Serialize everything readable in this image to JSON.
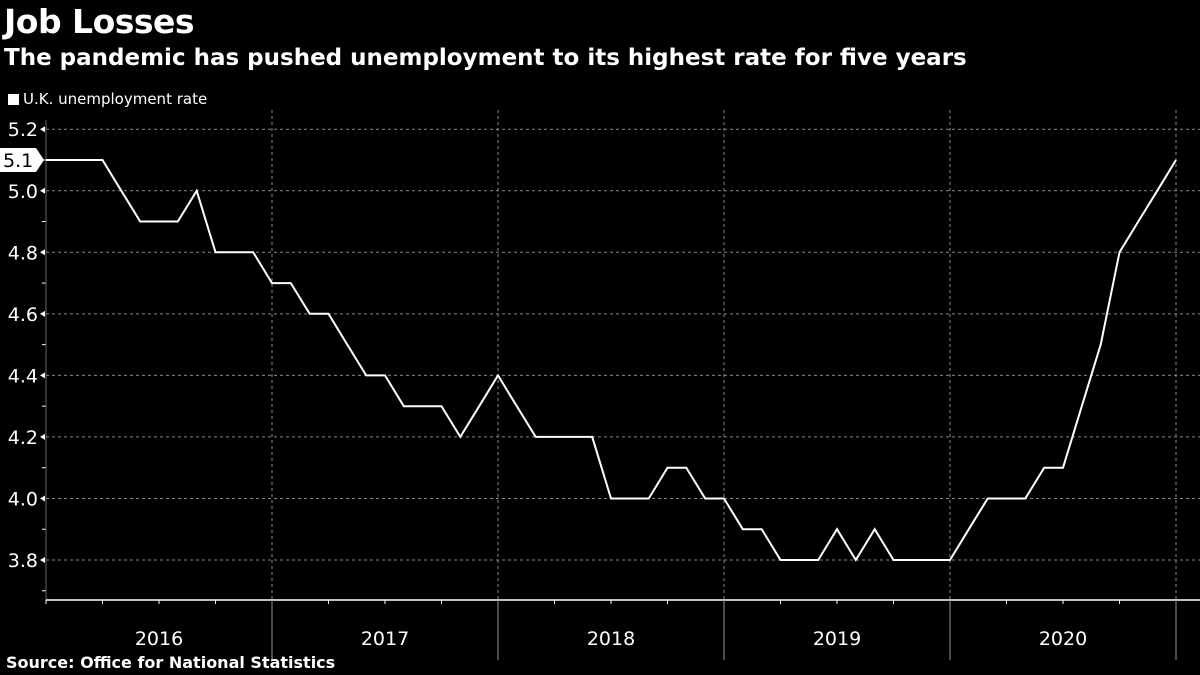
{
  "chart_data": {
    "type": "line",
    "title": "Job Losses",
    "subtitle": "The pandemic has pushed unemployment to its highest rate for five years",
    "legend": [
      "U.K. unemployment rate"
    ],
    "legend_placement": "top-left",
    "source": "Source: Office for National Statistics",
    "xlabel": "",
    "ylabel": "",
    "x_start": "2016-01",
    "x_frequency": "monthly",
    "x_ticks": [
      "2016",
      "2017",
      "2018",
      "2019",
      "2020"
    ],
    "y_ticks": [
      "3.8",
      "4.0",
      "4.2",
      "4.4",
      "4.6",
      "4.8",
      "5.0",
      "5.2"
    ],
    "ylim": [
      3.67,
      5.23
    ],
    "grid": true,
    "last_value_label": "5.1",
    "series": [
      {
        "name": "U.K. unemployment rate",
        "color": "#ffffff",
        "values": [
          5.1,
          5.1,
          5.1,
          5.1,
          5.0,
          4.9,
          4.9,
          4.9,
          5.0,
          4.8,
          4.8,
          4.8,
          4.7,
          4.7,
          4.6,
          4.6,
          4.5,
          4.4,
          4.4,
          4.3,
          4.3,
          4.3,
          4.2,
          4.3,
          4.4,
          4.3,
          4.2,
          4.2,
          4.2,
          4.2,
          4.0,
          4.0,
          4.0,
          4.1,
          4.1,
          4.0,
          4.0,
          3.9,
          3.9,
          3.8,
          3.8,
          3.8,
          3.9,
          3.8,
          3.9,
          3.8,
          3.8,
          3.8,
          3.8,
          3.9,
          4.0,
          4.0,
          4.0,
          4.1,
          4.1,
          4.3,
          4.5,
          4.8,
          4.9,
          5.0,
          5.1
        ]
      }
    ]
  }
}
